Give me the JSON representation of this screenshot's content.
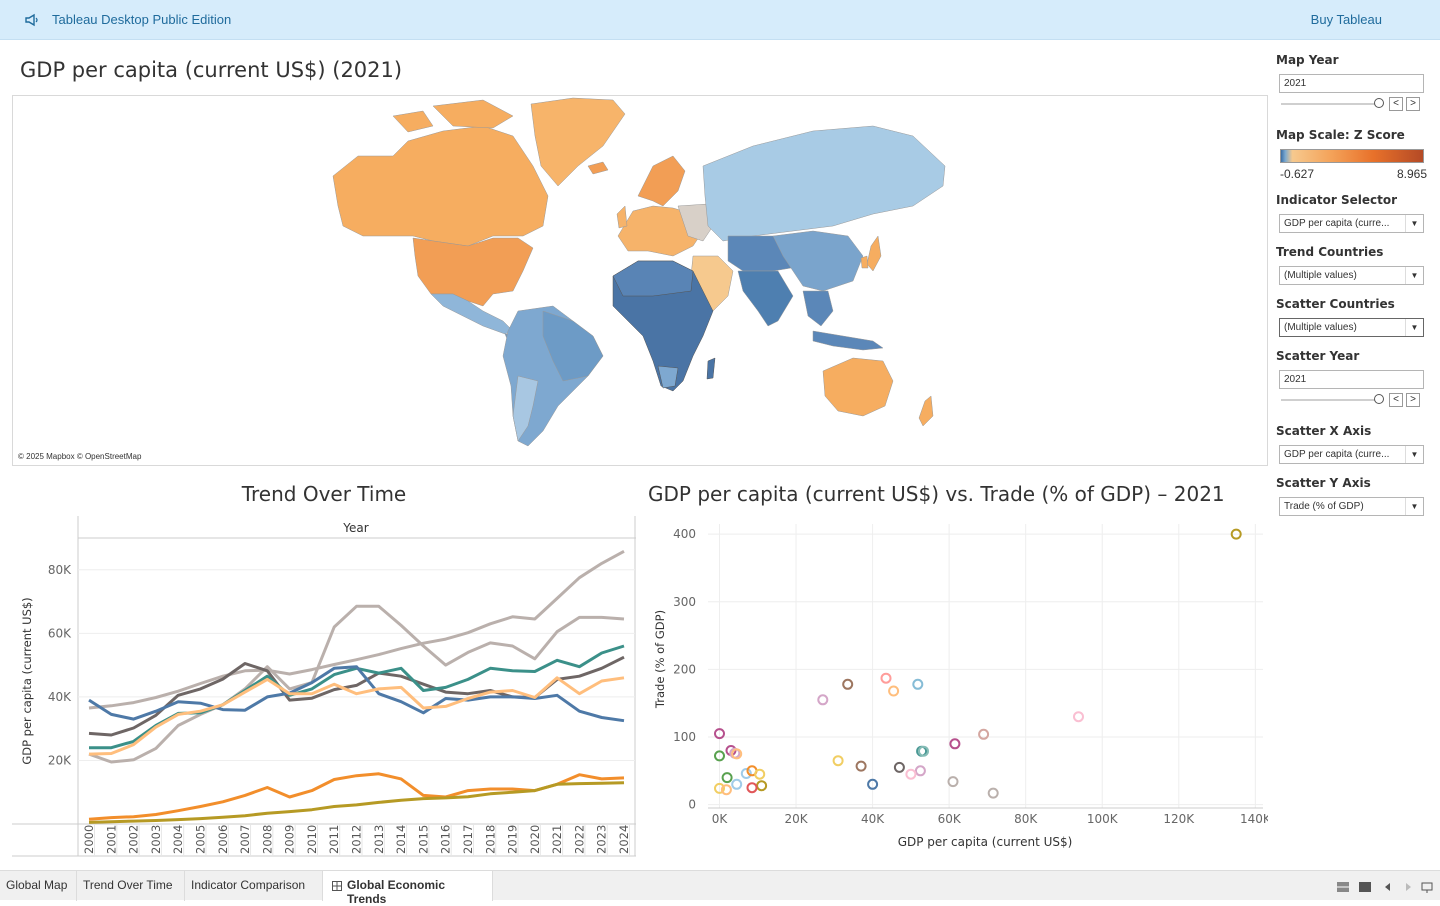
{
  "banner": {
    "title": "Tableau Desktop Public Edition",
    "buy": "Buy Tableau"
  },
  "map": {
    "title": "GDP per capita (current US$) (2021)",
    "credit": "© 2025 Mapbox © OpenStreetMap"
  },
  "trend": {
    "title": "Trend Over Time",
    "axis_header": "Year",
    "ylabel": "GDP per capita (current US$)"
  },
  "scatter": {
    "title": "GDP per capita (current US$) vs. Trade (% of GDP) – 2021",
    "xlabel": "GDP per capita (current US$)",
    "ylabel": "Trade (% of GDP)"
  },
  "panel": {
    "map_year_label": "Map Year",
    "map_year_value": "2021",
    "map_year_fraction": 0.96,
    "scale_label": "Map Scale: Z Score",
    "scale_min": "-0.627",
    "scale_max": "8.965",
    "indicator_label": "Indicator Selector",
    "indicator_value": "GDP per capita (curre...",
    "trend_countries_label": "Trend Countries",
    "trend_countries_value": "(Multiple values)",
    "scatter_countries_label": "Scatter Countries",
    "scatter_countries_value": "(Multiple values)",
    "scatter_year_label": "Scatter Year",
    "scatter_year_value": "2021",
    "scatter_year_fraction": 0.96,
    "scatter_x_label": "Scatter X Axis",
    "scatter_x_value": "GDP per capita (curre...",
    "scatter_y_label": "Scatter Y Axis",
    "scatter_y_value": "Trade (% of GDP)",
    "prev": "<",
    "next": ">",
    "dropdown": "▼"
  },
  "tabs": [
    {
      "label": "Global Map"
    },
    {
      "label": "Trend Over Time"
    },
    {
      "label": "Indicator Comparison"
    },
    {
      "label": "Global Economic Trends",
      "active": true
    }
  ],
  "colors": {
    "blue": "#4e79a7",
    "teal": "#3b9089",
    "gray": "#6e6665",
    "lightgray": "#bab0ac",
    "orange": "#f28e2b",
    "lightorange": "#ffbe7d",
    "olive": "#b69a24"
  },
  "chart_data": [
    {
      "type": "line",
      "title": "Trend Over Time",
      "xlabel": "Year",
      "ylabel": "GDP per capita (current US$)",
      "ylim": [
        0,
        90000
      ],
      "yticks": [
        {
          "v": 20000,
          "t": "20K"
        },
        {
          "v": 40000,
          "t": "40K"
        },
        {
          "v": 60000,
          "t": "60K"
        },
        {
          "v": 80000,
          "t": "80K"
        }
      ],
      "x": [
        "2000",
        "2001",
        "2002",
        "2003",
        "2004",
        "2005",
        "2006",
        "2007",
        "2008",
        "2009",
        "2010",
        "2011",
        "2012",
        "2013",
        "2014",
        "2015",
        "2016",
        "2017",
        "2018",
        "2019",
        "2020",
        "2021",
        "2022",
        "2023",
        "2024"
      ],
      "grid": true,
      "series": [
        {
          "color": "#bab0ac",
          "values": [
            36500,
            37200,
            38200,
            39800,
            41800,
            44200,
            46500,
            48200,
            48400,
            47200,
            48600,
            50200,
            51700,
            53300,
            55200,
            56900,
            58200,
            60200,
            63000,
            65200,
            64500,
            71000,
            77500,
            82000,
            85800
          ]
        },
        {
          "color": "#bab0ac",
          "values": [
            22000,
            19500,
            20200,
            23800,
            31000,
            34500,
            37500,
            42500,
            49500,
            42500,
            44500,
            62000,
            68500,
            68500,
            62500,
            56000,
            50000,
            54000,
            57000,
            56000,
            52000,
            60500,
            65000,
            65000,
            64500
          ]
        },
        {
          "color": "#6e6665",
          "values": [
            28500,
            28000,
            30200,
            34200,
            40500,
            42500,
            45600,
            50500,
            48200,
            39000,
            39600,
            42300,
            43600,
            47500,
            46500,
            44000,
            41500,
            41000,
            42000,
            40000,
            39800,
            45500,
            46500,
            49000,
            52500
          ]
        },
        {
          "color": "#3b9089",
          "values": [
            24000,
            24000,
            26000,
            31000,
            34800,
            35000,
            37500,
            42000,
            46500,
            40500,
            42500,
            47000,
            49000,
            47500,
            49000,
            42000,
            43000,
            45500,
            49000,
            48200,
            48000,
            51500,
            49500,
            53800,
            56000
          ]
        },
        {
          "color": "#4e79a7",
          "values": [
            39000,
            34500,
            33000,
            35500,
            38500,
            38000,
            36000,
            35800,
            40000,
            41200,
            44500,
            49000,
            49500,
            41000,
            38500,
            35000,
            39500,
            39000,
            40000,
            40000,
            39500,
            40500,
            35500,
            33500,
            32500
          ]
        },
        {
          "color": "#ffbe7d",
          "values": [
            22000,
            22200,
            25000,
            30500,
            34500,
            35500,
            37500,
            41500,
            45500,
            41000,
            41000,
            44000,
            41000,
            42500,
            43000,
            36500,
            37000,
            39500,
            41500,
            42000,
            39800,
            46000,
            41000,
            45000,
            46000
          ]
        },
        {
          "color": "#f28e2b",
          "values": [
            1500,
            2000,
            2300,
            3000,
            4200,
            5500,
            7000,
            9000,
            11500,
            8500,
            10500,
            14000,
            15200,
            15800,
            14200,
            9000,
            8500,
            10500,
            11000,
            11000,
            10500,
            12500,
            15500,
            14200,
            14500
          ]
        },
        {
          "color": "#b69a24",
          "values": [
            500,
            700,
            900,
            1100,
            1400,
            1700,
            2100,
            2600,
            3400,
            3900,
            4500,
            5500,
            6000,
            6800,
            7500,
            8000,
            8200,
            8600,
            9500,
            10000,
            10500,
            12500,
            12700,
            12800,
            13000
          ]
        }
      ]
    },
    {
      "type": "scatter",
      "title": "GDP per capita (current US$) vs. Trade (% of GDP) – 2021",
      "xlabel": "GDP per capita (current US$)",
      "ylabel": "Trade (% of GDP)",
      "xlim": [
        -3000,
        142000
      ],
      "ylim": [
        -5,
        415
      ],
      "xticks": [
        {
          "v": 0,
          "t": "0K"
        },
        {
          "v": 20000,
          "t": "20K"
        },
        {
          "v": 40000,
          "t": "40K"
        },
        {
          "v": 60000,
          "t": "60K"
        },
        {
          "v": 80000,
          "t": "80K"
        },
        {
          "v": 100000,
          "t": "100K"
        },
        {
          "v": 120000,
          "t": "120K"
        },
        {
          "v": 140000,
          "t": "140K"
        }
      ],
      "yticks": [
        {
          "v": 0,
          "t": "0"
        },
        {
          "v": 100,
          "t": "100"
        },
        {
          "v": 200,
          "t": "200"
        },
        {
          "v": 300,
          "t": "300"
        },
        {
          "v": 400,
          "t": "400"
        }
      ],
      "grid": true,
      "points": [
        {
          "x": 135000,
          "y": 400,
          "color": "#b69a24"
        },
        {
          "x": 93800,
          "y": 130,
          "color": "#fabfd2"
        },
        {
          "x": 69000,
          "y": 104,
          "color": "#d4a6a0"
        },
        {
          "x": 71500,
          "y": 17,
          "color": "#bab0ac"
        },
        {
          "x": 61500,
          "y": 90,
          "color": "#b6508d"
        },
        {
          "x": 61000,
          "y": 34,
          "color": "#bab0ac"
        },
        {
          "x": 52800,
          "y": 79,
          "color": "#499894"
        },
        {
          "x": 53300,
          "y": 79,
          "color": "#86bcb6"
        },
        {
          "x": 52500,
          "y": 50,
          "color": "#d4a6c8"
        },
        {
          "x": 50000,
          "y": 45,
          "color": "#fabfd2"
        },
        {
          "x": 51800,
          "y": 178,
          "color": "#86bcd6"
        },
        {
          "x": 47000,
          "y": 55,
          "color": "#6e6665"
        },
        {
          "x": 43500,
          "y": 187,
          "color": "#ff9d9a"
        },
        {
          "x": 45500,
          "y": 168,
          "color": "#ffbe7d"
        },
        {
          "x": 40000,
          "y": 30,
          "color": "#4e79a7"
        },
        {
          "x": 33500,
          "y": 178,
          "color": "#9d7660"
        },
        {
          "x": 37000,
          "y": 57,
          "color": "#9d7660"
        },
        {
          "x": 31000,
          "y": 65,
          "color": "#f1ce63"
        },
        {
          "x": 27000,
          "y": 155,
          "color": "#d4a6c8"
        },
        {
          "x": 0,
          "y": 105,
          "color": "#b6508d"
        },
        {
          "x": 0,
          "y": 72,
          "color": "#59a14f"
        },
        {
          "x": 3000,
          "y": 80,
          "color": "#b6508d"
        },
        {
          "x": 4000,
          "y": 76,
          "color": "#d4a6c8"
        },
        {
          "x": 4500,
          "y": 75,
          "color": "#ffbe7d"
        },
        {
          "x": 2000,
          "y": 40,
          "color": "#59a14f"
        },
        {
          "x": 0,
          "y": 24,
          "color": "#f1ce63"
        },
        {
          "x": 1800,
          "y": 22,
          "color": "#ffbe7d"
        },
        {
          "x": 4500,
          "y": 30,
          "color": "#a0cbe8"
        },
        {
          "x": 7000,
          "y": 46,
          "color": "#a0cbe8"
        },
        {
          "x": 8500,
          "y": 50,
          "color": "#f28e2b"
        },
        {
          "x": 10500,
          "y": 45,
          "color": "#f1ce63"
        },
        {
          "x": 11000,
          "y": 28,
          "color": "#b69a24"
        },
        {
          "x": 8500,
          "y": 25,
          "color": "#e15759"
        }
      ]
    }
  ]
}
